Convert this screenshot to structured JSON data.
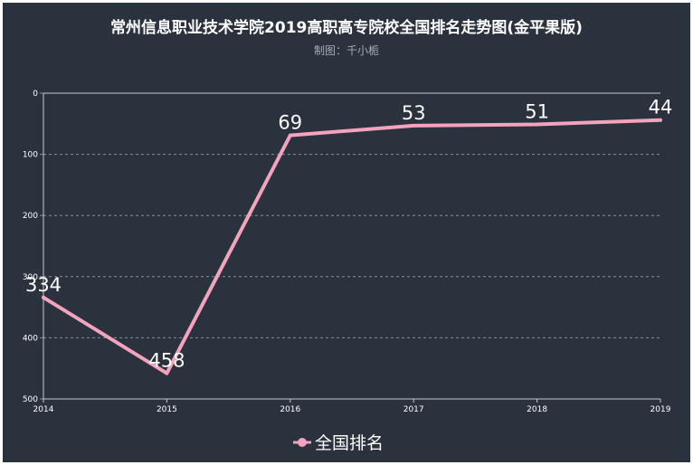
{
  "chart_data": {
    "type": "line",
    "title": "常州信息职业技术学院2019高职高专院校全国排名走势图(金平果版)",
    "subtitle": "制图：千小栀",
    "xlabel": "",
    "ylabel": "",
    "categories": [
      "2014",
      "2015",
      "2016",
      "2017",
      "2018",
      "2019"
    ],
    "series": [
      {
        "name": "全国排名",
        "values": [
          334,
          458,
          69,
          53,
          51,
          44
        ]
      }
    ],
    "ylim": [
      0,
      500
    ],
    "y_inverted": true,
    "y_ticks": [
      0,
      100,
      200,
      300,
      400,
      500
    ],
    "grid": true,
    "legend_position": "bottom-center",
    "colors": {
      "background": "#2a323e",
      "line": "#f4a3bd",
      "grid": "#8a9099",
      "text": "#ffffff"
    }
  }
}
